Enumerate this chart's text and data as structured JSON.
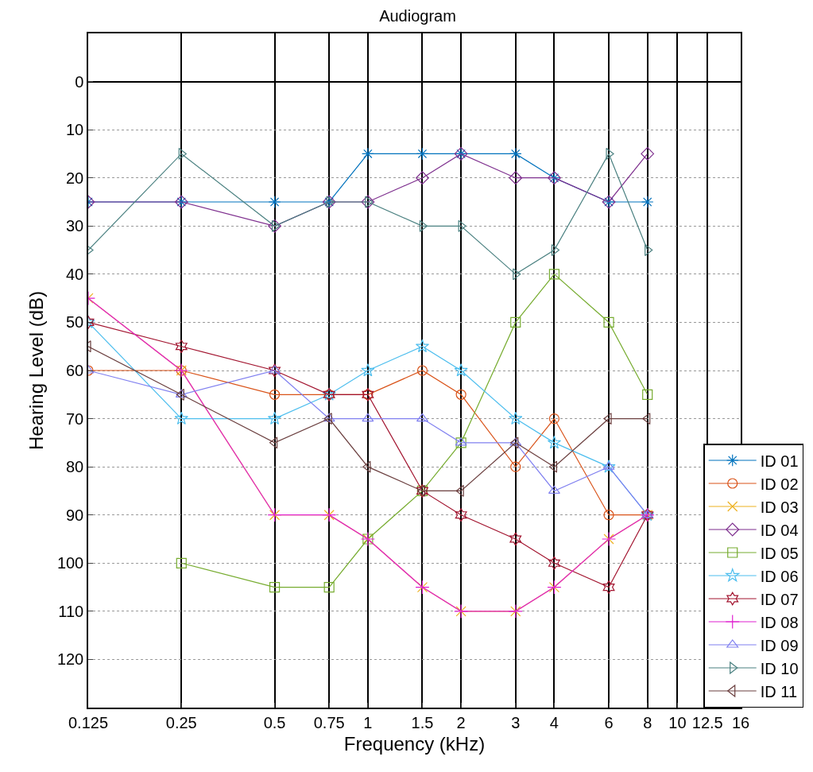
{
  "chart_data": {
    "type": "line",
    "title": "Audiogram",
    "xlabel": "Frequency (kHz)",
    "ylabel": "Hearing Level (dB)",
    "x": [
      0.125,
      0.25,
      0.5,
      0.75,
      1,
      1.5,
      2,
      3,
      4,
      6,
      8
    ],
    "log": "x",
    "xlim": [
      0.125,
      16
    ],
    "xticks": [
      0.125,
      0.25,
      0.5,
      0.75,
      1,
      1.5,
      2,
      3,
      4,
      6,
      8,
      10,
      12.5,
      16
    ],
    "ylim": [
      130,
      -10
    ],
    "yticks": [
      0,
      10,
      20,
      30,
      40,
      50,
      60,
      70,
      80,
      90,
      100,
      110,
      120
    ],
    "grid": true,
    "legend": "bottom right",
    "line_style": "solid",
    "series": [
      {
        "name": "ID 01",
        "color": "#0072bd",
        "marker": "cross",
        "values": [
          25,
          25,
          25,
          25,
          15,
          15,
          15,
          15,
          20,
          25,
          25
        ]
      },
      {
        "name": "ID 02",
        "color": "#d95319",
        "marker": "circle",
        "values": [
          60,
          60,
          65,
          65,
          65,
          60,
          65,
          80,
          70,
          90,
          90
        ]
      },
      {
        "name": "ID 03",
        "color": "#edb120",
        "marker": "x",
        "values": [
          45,
          60,
          90,
          90,
          95,
          105,
          110,
          110,
          105,
          95,
          90
        ]
      },
      {
        "name": "ID 04",
        "color": "#7e2f8e",
        "marker": "diamond",
        "values": [
          25,
          25,
          30,
          25,
          25,
          20,
          15,
          20,
          20,
          25,
          15
        ]
      },
      {
        "name": "ID 05",
        "color": "#77ac30",
        "marker": "square",
        "values": [
          null,
          100,
          105,
          105,
          95,
          85,
          75,
          50,
          40,
          50,
          65
        ]
      },
      {
        "name": "ID 06",
        "color": "#4dbeee",
        "marker": "star",
        "values": [
          50,
          70,
          70,
          65,
          60,
          55,
          60,
          70,
          75,
          80,
          90
        ]
      },
      {
        "name": "ID 07",
        "color": "#a2142f",
        "marker": "cross6",
        "values": [
          50,
          55,
          60,
          65,
          65,
          85,
          90,
          95,
          100,
          105,
          90
        ]
      },
      {
        "name": "ID 08",
        "color": "#e020d0",
        "marker": "plus",
        "values": [
          45,
          60,
          90,
          90,
          95,
          105,
          110,
          110,
          105,
          95,
          90
        ]
      },
      {
        "name": "ID 09",
        "color": "#8080f0",
        "marker": "triangle-up",
        "values": [
          60,
          65,
          60,
          70,
          70,
          70,
          75,
          75,
          85,
          80,
          90
        ]
      },
      {
        "name": "ID 10",
        "color": "#4a8080",
        "marker": "triangle-right",
        "values": [
          35,
          15,
          30,
          25,
          25,
          30,
          30,
          40,
          35,
          15,
          35
        ]
      },
      {
        "name": "ID 11",
        "color": "#6b3f3f",
        "marker": "triangle-left",
        "values": [
          55,
          65,
          75,
          70,
          80,
          85,
          85,
          75,
          80,
          70,
          70
        ]
      }
    ]
  }
}
